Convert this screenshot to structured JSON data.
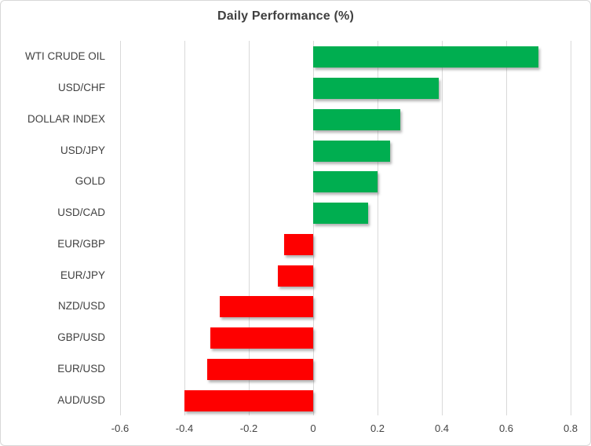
{
  "chart_data": {
    "type": "bar",
    "orientation": "horizontal",
    "title": "Daily Performance (%)",
    "categories": [
      "WTI CRUDE OIL",
      "USD/CHF",
      "DOLLAR INDEX",
      "USD/JPY",
      "GOLD",
      "USD/CAD",
      "EUR/GBP",
      "EUR/JPY",
      "NZD/USD",
      "GBP/USD",
      "EUR/USD",
      "AUD/USD"
    ],
    "values": [
      0.7,
      0.39,
      0.27,
      0.24,
      0.2,
      0.17,
      -0.09,
      -0.11,
      -0.29,
      -0.32,
      -0.33,
      -0.4
    ],
    "xlabel": "",
    "ylabel": "",
    "xlim": [
      -0.6,
      0.8
    ],
    "x_ticks": [
      -0.6,
      -0.4,
      -0.2,
      0,
      0.2,
      0.4,
      0.6,
      0.8
    ],
    "x_tick_labels": [
      "-0.6",
      "-0.4",
      "-0.2",
      "0",
      "0.2",
      "0.4",
      "0.6",
      "0.8"
    ],
    "grid": "vertical-gridlines-on",
    "legend": "none",
    "colors": {
      "positive_bar": "#00ae50",
      "negative_bar": "#fe0000",
      "gridline": "#d9d9d9",
      "title_text": "#3f3f3f",
      "axis_text": "#404040",
      "frame_border": "#d8d8d8",
      "background": "#ffffff"
    }
  }
}
